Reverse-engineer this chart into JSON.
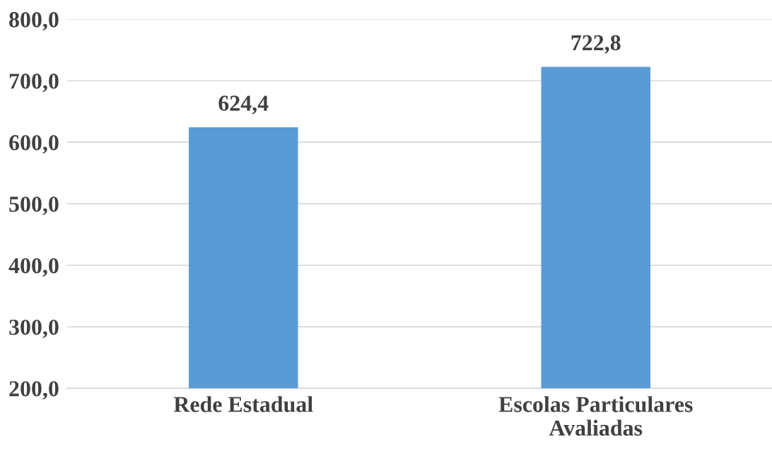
{
  "chart_data": {
    "type": "bar",
    "categories": [
      "Rede Estadual",
      "Escolas Particulares\nAvaliadas"
    ],
    "values": [
      624.4,
      722.8
    ],
    "value_labels": [
      "624,4",
      "722,8"
    ],
    "color": "#5b9bd5",
    "ylim": [
      200,
      800
    ],
    "yticks": [
      {
        "value": 200,
        "label": "200,0"
      },
      {
        "value": 300,
        "label": "300,0"
      },
      {
        "value": 400,
        "label": "400,0"
      },
      {
        "value": 500,
        "label": "500,0"
      },
      {
        "value": 600,
        "label": "600,0"
      },
      {
        "value": 700,
        "label": "700,0"
      },
      {
        "value": 800,
        "label": "800,0"
      }
    ],
    "grid": "y",
    "legend": false
  }
}
